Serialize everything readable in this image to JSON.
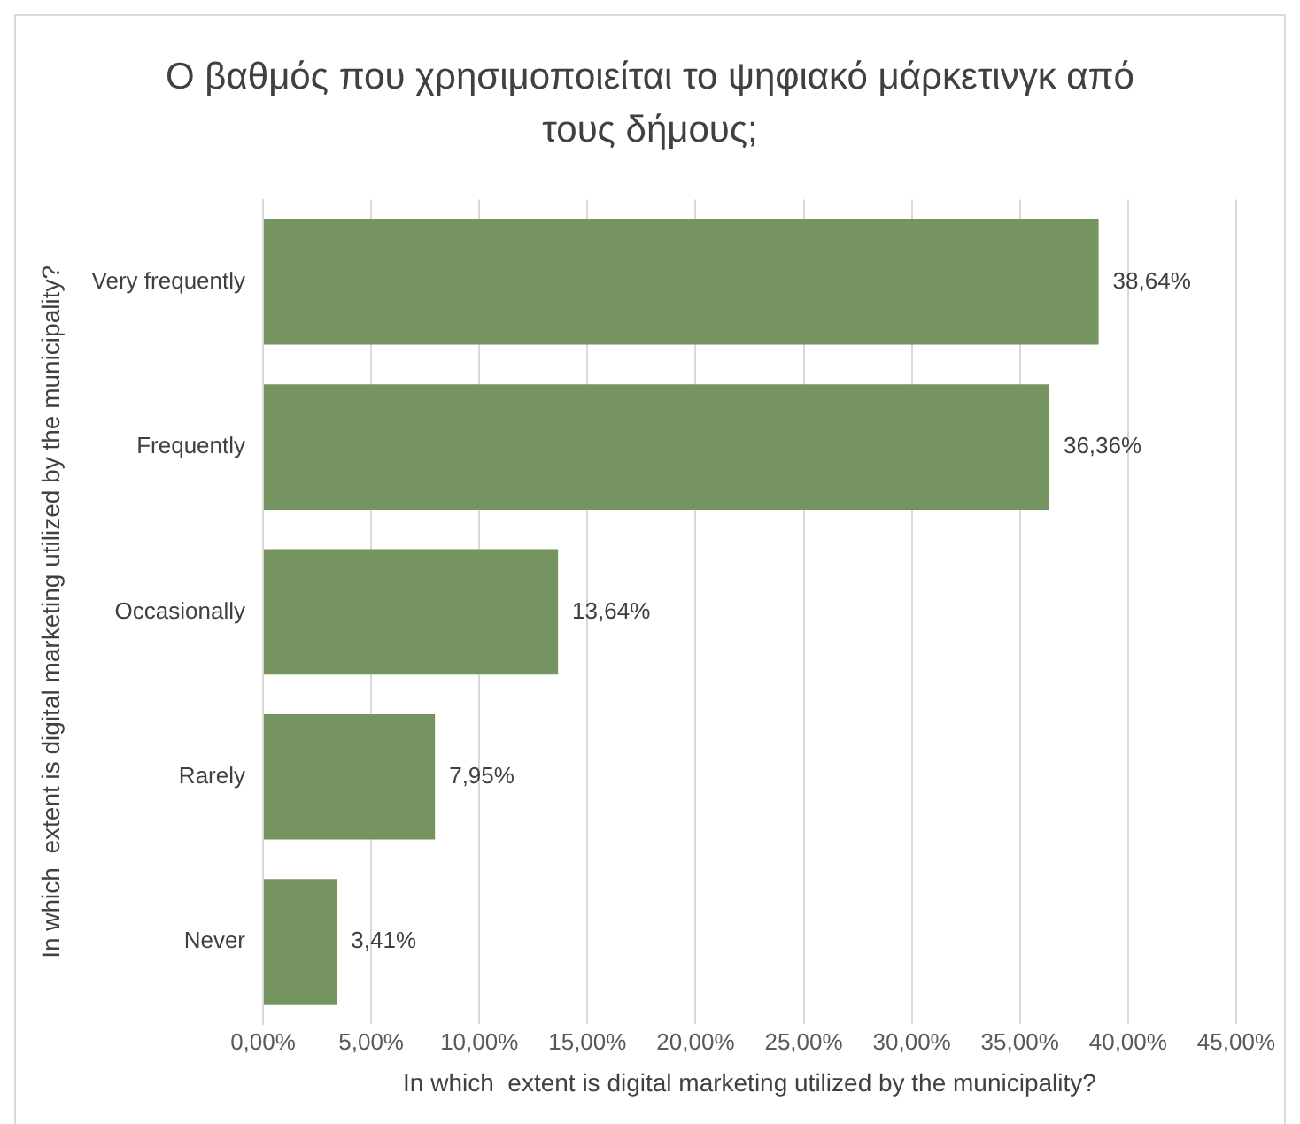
{
  "chart_data": {
    "type": "bar",
    "orientation": "horizontal",
    "title": "Ο βαθμός που χρησιμοποιείται το ψηφιακό μάρκετινγκ από τους δήμους;",
    "xlabel": "In which  extent is digital marketing utilized by the municipality?",
    "ylabel": "In which  extent is digital marketing utilized by the municipality?",
    "categories": [
      "Very frequently",
      "Frequently",
      "Occasionally",
      "Rarely",
      "Never"
    ],
    "values": [
      38.64,
      36.36,
      13.64,
      7.95,
      3.41
    ],
    "value_labels": [
      "38,64%",
      "36,36%",
      "13,64%",
      "7,95%",
      "3,41%"
    ],
    "color": "#76945f",
    "xlim": [
      0,
      45
    ],
    "xticks": [
      {
        "value": 0,
        "label": "0,00%"
      },
      {
        "value": 5,
        "label": "5,00%"
      },
      {
        "value": 10,
        "label": "10,00%"
      },
      {
        "value": 15,
        "label": "15,00%"
      },
      {
        "value": 20,
        "label": "20,00%"
      },
      {
        "value": 25,
        "label": "25,00%"
      },
      {
        "value": 30,
        "label": "30,00%"
      },
      {
        "value": 35,
        "label": "35,00%"
      },
      {
        "value": 40,
        "label": "40,00%"
      },
      {
        "value": 45,
        "label": "45,00%"
      }
    ],
    "grid": "x",
    "legend": false
  }
}
